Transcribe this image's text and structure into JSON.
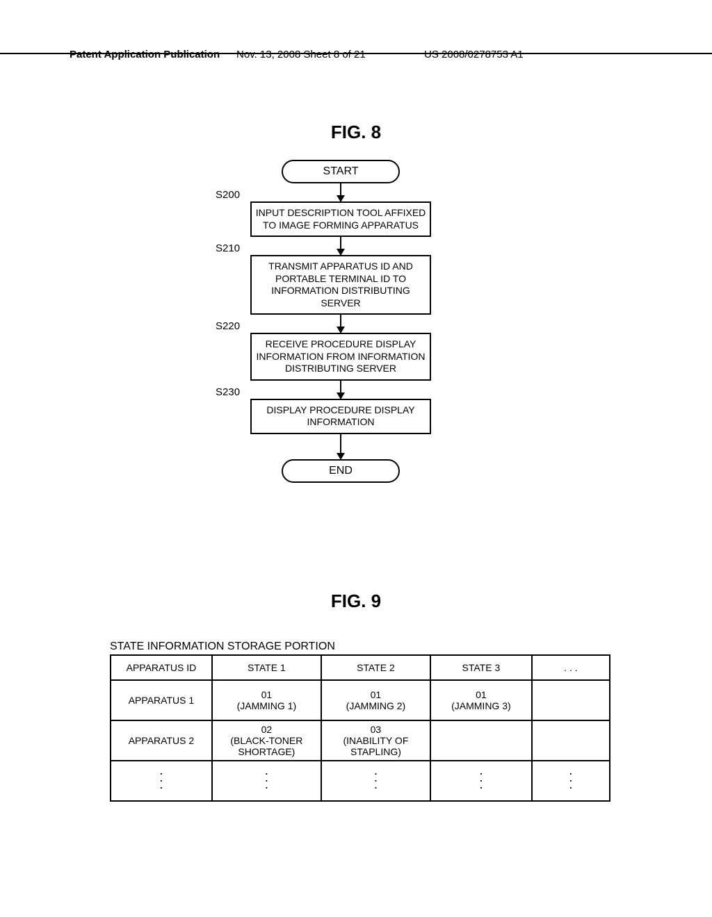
{
  "header": {
    "left": "Patent Application Publication",
    "mid": "Nov. 13, 2008  Sheet 8 of 21",
    "right": "US 2008/0278753 A1"
  },
  "fig8": {
    "title": "FIG. 8",
    "start": "START",
    "end": "END",
    "steps": [
      {
        "id": "S200",
        "text": "INPUT DESCRIPTION TOOL AFFIXED TO IMAGE FORMING APPARATUS"
      },
      {
        "id": "S210",
        "text": "TRANSMIT APPARATUS ID AND PORTABLE TERMINAL ID TO INFORMATION DISTRIBUTING SERVER"
      },
      {
        "id": "S220",
        "text": "RECEIVE PROCEDURE DISPLAY INFORMATION FROM INFORMATION DISTRIBUTING SERVER"
      },
      {
        "id": "S230",
        "text": "DISPLAY PROCEDURE DISPLAY INFORMATION"
      }
    ],
    "colors": {
      "line": "#000000",
      "bg": "#ffffff"
    }
  },
  "fig9": {
    "title": "FIG. 9",
    "subtitle": "STATE INFORMATION STORAGE PORTION",
    "columns": [
      "APPARATUS ID",
      "STATE 1",
      "STATE 2",
      "STATE 3",
      ". . ."
    ],
    "rows": [
      [
        "APPARATUS 1",
        "01\n(JAMMING 1)",
        "01\n(JAMMING 2)",
        "01\n(JAMMING 3)",
        ""
      ],
      [
        "APPARATUS 2",
        "02\n(BLACK-TONER\nSHORTAGE)",
        "03\n(INABILITY OF\nSTAPLING)",
        "",
        ""
      ]
    ],
    "vdots": "⋮",
    "colors": {
      "border": "#000000",
      "bg": "#ffffff"
    }
  }
}
